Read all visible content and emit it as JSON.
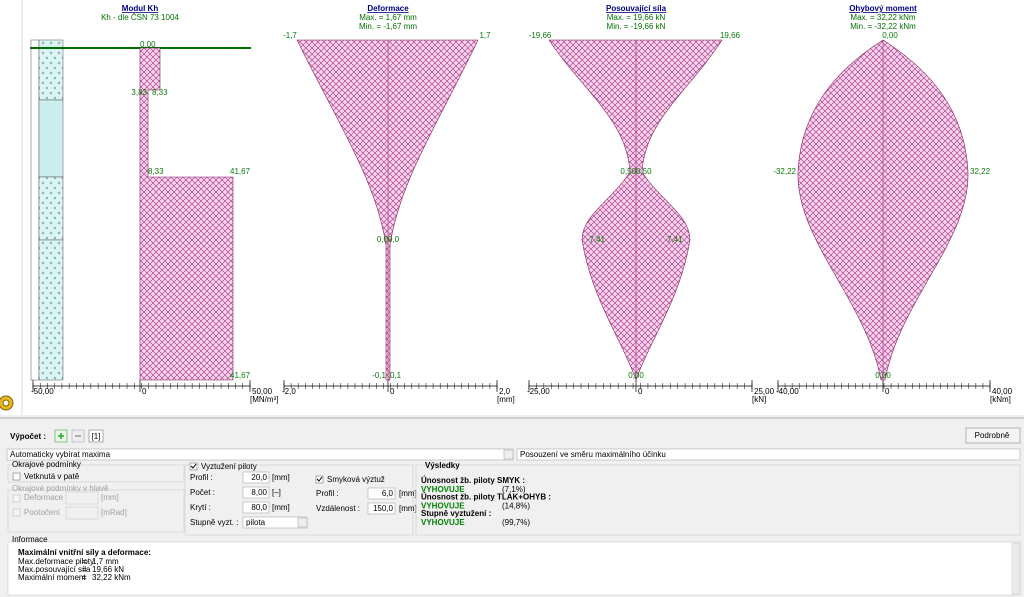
{
  "plots": [
    {
      "title": "Modul Kh",
      "subtitle": [
        "Kh - dle ČSN 73 1004"
      ],
      "labels": [
        "0,00",
        "3,83",
        "8,33",
        "8,33",
        "41,67",
        "41,67"
      ],
      "ticks": [
        "-50,00",
        "0",
        "50,00"
      ],
      "unit": "[MN/m³]"
    },
    {
      "title": "Deformace",
      "subtitle": [
        "Max. = 1,67 mm",
        "Min. = -1,67 mm"
      ],
      "labels": [
        "-1,7",
        "1,7",
        "0,0",
        "0,0",
        "-0,1",
        "0,1"
      ],
      "ticks": [
        "-2,0",
        "0",
        "2,0"
      ],
      "unit": "[mm]"
    },
    {
      "title": "Posouvající síla",
      "subtitle": [
        "Max. = 19,66 kN",
        "Min. = -19,66 kN"
      ],
      "labels": [
        "-19,66",
        "19,66",
        "0,50",
        "0,50",
        "-7,41",
        "7,41",
        "0,00"
      ],
      "ticks": [
        "-25,00",
        "0",
        "25,00"
      ],
      "unit": "[kN]"
    },
    {
      "title": "Ohybový moment",
      "subtitle": [
        "Max. = 32,22 kNm",
        "Min. = -32,22 kNm"
      ],
      "labels": [
        "0,00",
        "-32,22",
        "32,22",
        "0,00"
      ],
      "ticks": [
        "-40,00",
        "0",
        "40,00"
      ],
      "unit": "[kNm]"
    }
  ],
  "panel": {
    "calc_label": "Výpočet :",
    "variant": "[1]",
    "details_button": "Podrobně",
    "select_max": "Automaticky vybírat maxima",
    "select_direction": "Posouzení ve směru maximálního účinku",
    "boundary": {
      "title": "Okrajové podmínky",
      "fixed": "Vetknutá v patě"
    },
    "head": {
      "title": "Okrajové podmínky v hlavě",
      "deformation": "Deformace",
      "deformation_unit": "[mm]",
      "rotation": "Pootočení",
      "rotation_unit": "[mRad]"
    },
    "reinforcement": {
      "enabled": "Vyztužení piloty",
      "rows": [
        [
          "Profil :",
          "20,0",
          "[mm]"
        ],
        [
          "Počet :",
          "8,00",
          "[–]"
        ],
        [
          "Krytí :",
          "80,0",
          "[mm]"
        ]
      ],
      "grade_label": "Stupně vyzt. :",
      "grade": "pilota"
    },
    "shear": {
      "enabled": "Smyková výztuž",
      "rows": [
        [
          "Profil :",
          "6,0",
          "[mm]"
        ],
        [
          "Vzdálenost :",
          "150,0",
          "[mm]"
        ]
      ]
    },
    "results": {
      "title": "Výsledky",
      "items": [
        {
          "label": "Únosnost žb. piloty SMYK :",
          "status": "VYHOVUJE",
          "ratio": "(7,1%)"
        },
        {
          "label": "Únosnost žb. piloty TLAK+OHYB :",
          "status": "VYHOVUJE",
          "ratio": "(14,8%)"
        },
        {
          "label": "Stupně vyztužení :",
          "status": "VYHOVUJE",
          "ratio": "(99,7%)"
        }
      ]
    },
    "info": {
      "title": "Informace",
      "heading": "Maximální vnitřní síly a deformace:",
      "rows": [
        [
          "Max.deformace piloty",
          "=",
          "1,7 mm"
        ],
        [
          "Max.posouvající síla",
          "=",
          "19,66 kN"
        ],
        [
          "Maximální moment",
          "=",
          "32,22 kNm"
        ]
      ]
    }
  }
}
